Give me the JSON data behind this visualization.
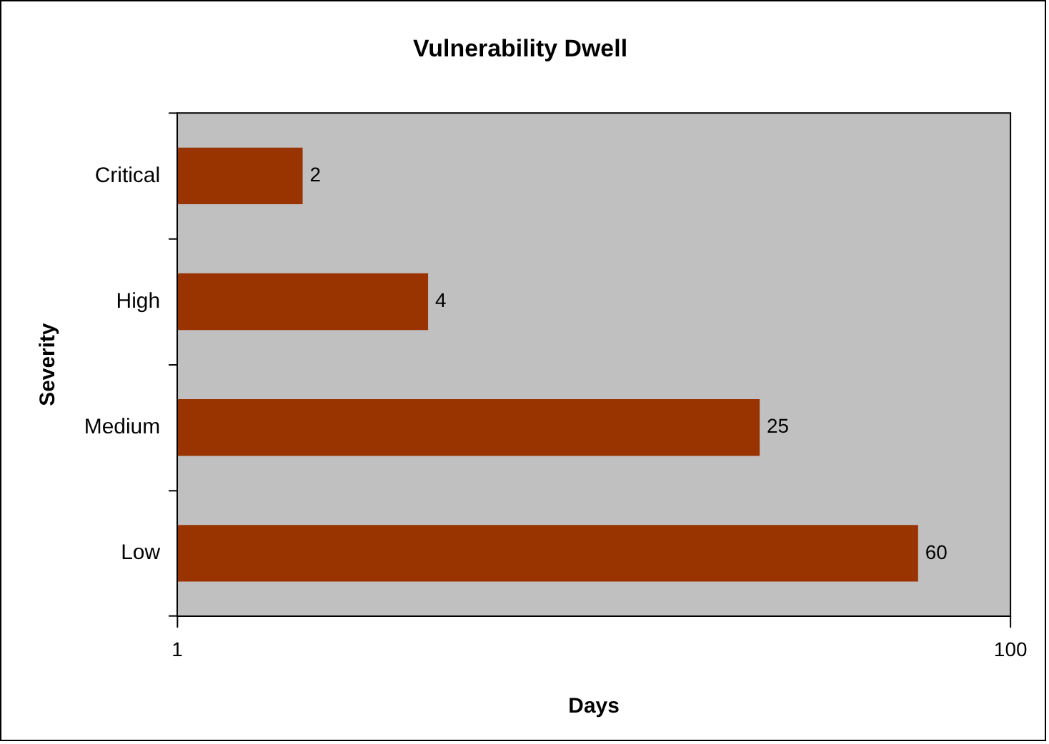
{
  "chart_data": {
    "type": "bar",
    "orientation": "horizontal",
    "title": "Vulnerability Dwell",
    "xlabel": "Days",
    "ylabel": "Severity",
    "categories": [
      "Critical",
      "High",
      "Medium",
      "Low"
    ],
    "values": [
      2,
      4,
      25,
      60
    ],
    "color": "#993300",
    "xlim": [
      1,
      100
    ],
    "xticks": [
      1,
      100
    ],
    "log": "x",
    "grid": false,
    "legend": false,
    "data_labels": true
  }
}
